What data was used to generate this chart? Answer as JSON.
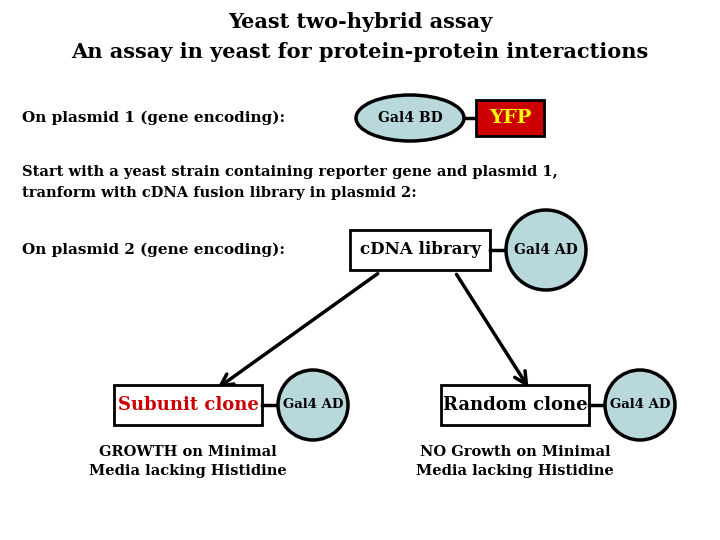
{
  "title_line1": "Yeast two-hybrid assay",
  "title_line2": "An assay in yeast for protein-protein interactions",
  "bg_color": "#ffffff",
  "plasmid1_label": "On plasmid 1 (gene encoding):",
  "plasmid2_label": "On plasmid 2 (gene encoding):",
  "description_text": "Start with a yeast strain containing reporter gene and plasmid 1,\ntranform with cDNA fusion library in plasmid 2:",
  "gal4bd_label": "Gal4 BD",
  "yfp_label": "YFP",
  "cdna_label": "cDNA library",
  "gal4ad_label": "Gal4 AD",
  "subunit_label": "Subunit clone",
  "random_label": "Random clone",
  "gal4ad2_label": "Gal4 AD",
  "gal4ad3_label": "Gal4 AD",
  "growth_text": "GROWTH on Minimal\nMedia lacking Histidine",
  "nogrowth_text": "NO Growth on Minimal\nMedia lacking Histidine",
  "ellipse_fill": "#b8d8dc",
  "ellipse_edge": "#000000",
  "rect_fill": "#ffffff",
  "rect_edge": "#000000",
  "yfp_fill": "#cc0000",
  "yfp_text_color": "#ffff00",
  "subunit_text_color": "#cc0000",
  "random_text_color": "#000000",
  "arrow_color": "#000000",
  "connector_color": "#000000"
}
